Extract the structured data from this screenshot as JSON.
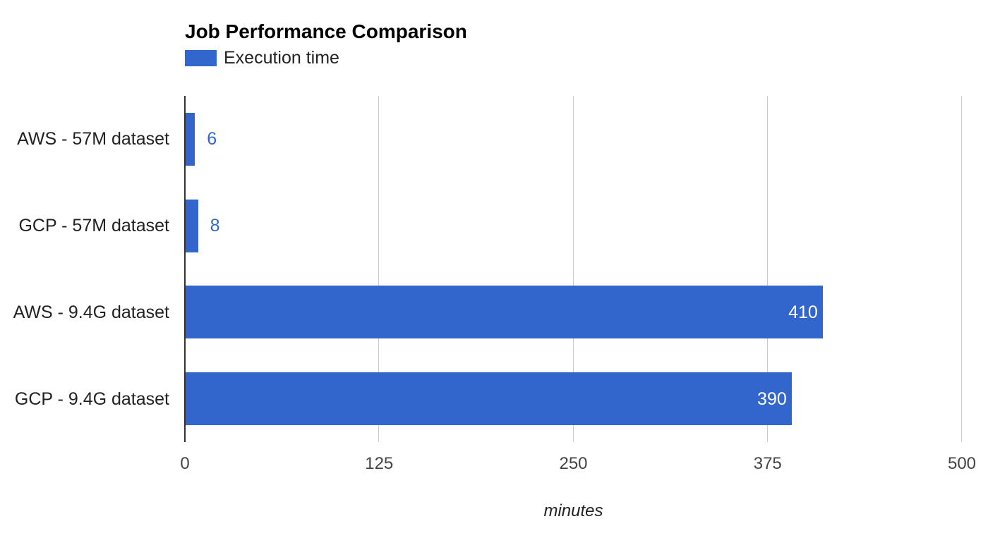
{
  "chart_data": {
    "type": "bar",
    "orientation": "horizontal",
    "title": "Job Performance Comparison",
    "categories": [
      "AWS - 57M dataset",
      "GCP - 57M dataset",
      "AWS - 9.4G dataset",
      "GCP - 9.4G dataset"
    ],
    "series": [
      {
        "name": "Execution time",
        "values": [
          6,
          8,
          410,
          390
        ]
      }
    ],
    "value_labels": [
      "6",
      "8",
      "410",
      "390"
    ],
    "xlabel": "minutes",
    "xlim": [
      0,
      500
    ],
    "xticks": [
      0,
      125,
      250,
      375,
      500
    ],
    "grid": true,
    "legend_position": "top-left",
    "colors": {
      "bar": "#3366cc",
      "value_label_outside": "#3366cc",
      "value_label_inside": "#ffffff",
      "gridline": "#cccccc",
      "axis_line": "#333333",
      "title_text": "#000000",
      "label_text": "#222222",
      "tick_text": "#444444"
    }
  }
}
